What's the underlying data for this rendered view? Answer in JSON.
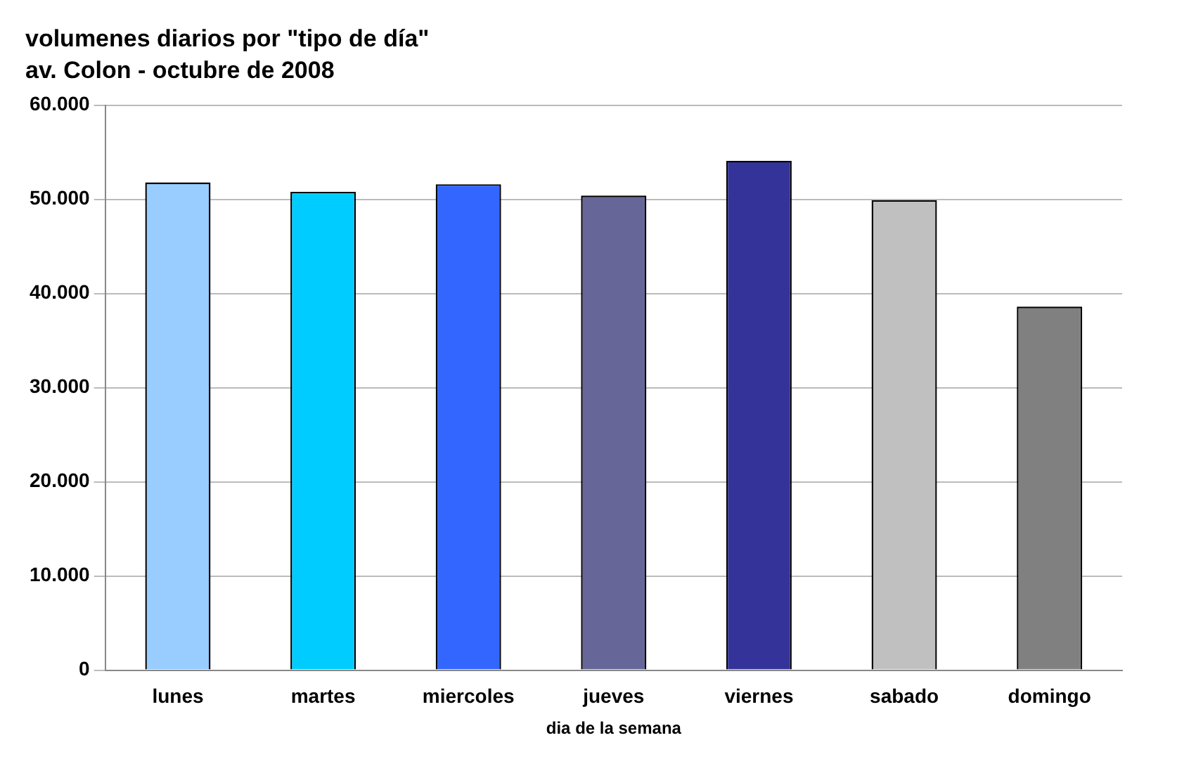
{
  "chart_data": {
    "type": "bar",
    "title": "volumenes diarios por \"tipo de día\"",
    "subtitle": "av. Colon - octubre de 2008",
    "xlabel": "dia de la semana",
    "categories": [
      "lunes",
      "martes",
      "miercoles",
      "jueves",
      "viernes",
      "sabado",
      "domingo"
    ],
    "values": [
      51800,
      50800,
      51600,
      50400,
      54100,
      49900,
      38600
    ],
    "colors": [
      "#99ccff",
      "#00ccff",
      "#3366ff",
      "#666699",
      "#333399",
      "#c0c0c0",
      "#808080"
    ],
    "ylim": [
      0,
      60000
    ],
    "yticks": [
      {
        "value": 0,
        "label": "0"
      },
      {
        "value": 10000,
        "label": "10.000"
      },
      {
        "value": 20000,
        "label": "20.000"
      },
      {
        "value": 30000,
        "label": "30.000"
      },
      {
        "value": 40000,
        "label": "40.000"
      },
      {
        "value": 50000,
        "label": "50.000"
      },
      {
        "value": 60000,
        "label": "60.000"
      }
    ],
    "grid": "y"
  }
}
